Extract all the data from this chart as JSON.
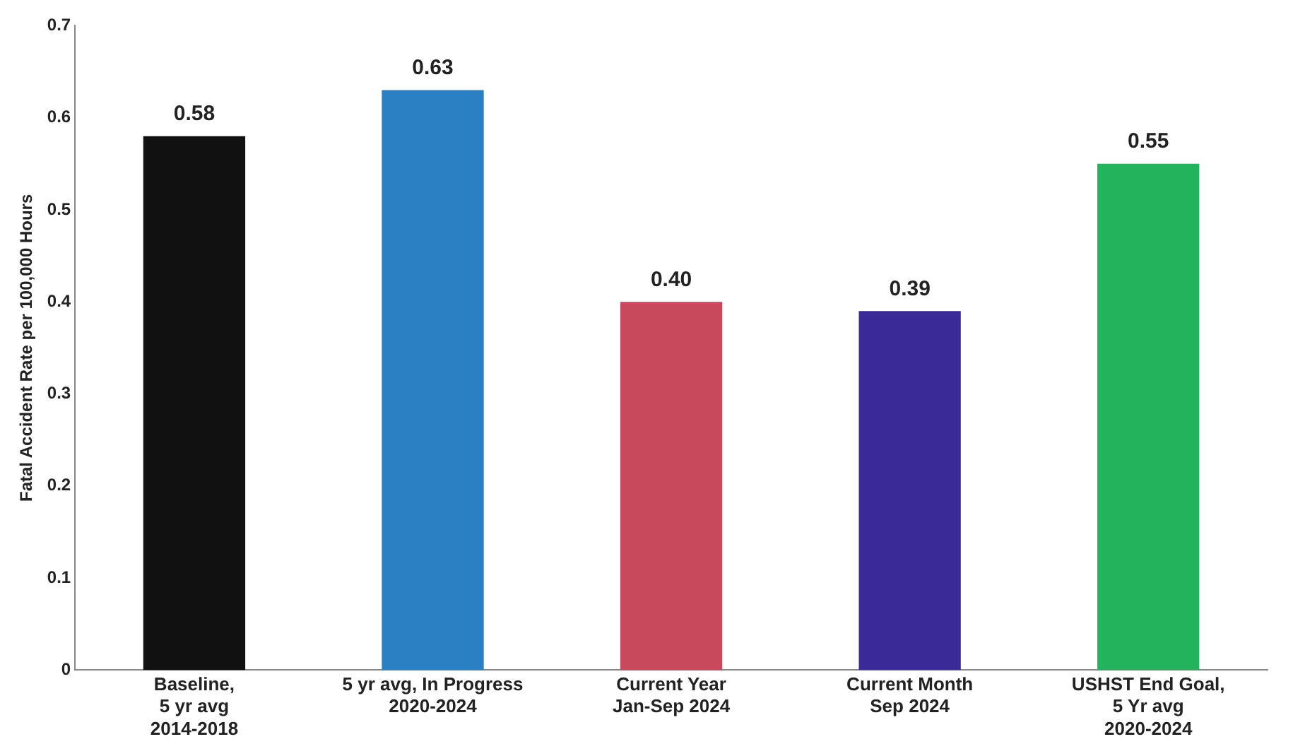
{
  "chart_data": {
    "type": "bar",
    "ylabel": "Fatal Accident Rate per 100,000 Hours",
    "categories": [
      "Baseline,\n5 yr avg\n2014-2018",
      "5 yr avg, In Progress\n2020-2024",
      "Current Year\nJan-Sep 2024",
      "Current Month\nSep 2024",
      "USHST End Goal,\n5 Yr avg\n2020-2024"
    ],
    "values": [
      0.58,
      0.63,
      0.4,
      0.39,
      0.55
    ],
    "colors": [
      "#111111",
      "#2b7fc3",
      "#c8485c",
      "#3a2a98",
      "#22b35c"
    ],
    "value_labels": [
      "0.58",
      "0.63",
      "0.40",
      "0.39",
      "0.55"
    ],
    "ylim": [
      0,
      0.7
    ],
    "yticks": [
      0,
      0.1,
      0.2,
      0.3,
      0.4,
      0.5,
      0.6,
      0.7
    ],
    "grid": false,
    "legend": false
  }
}
